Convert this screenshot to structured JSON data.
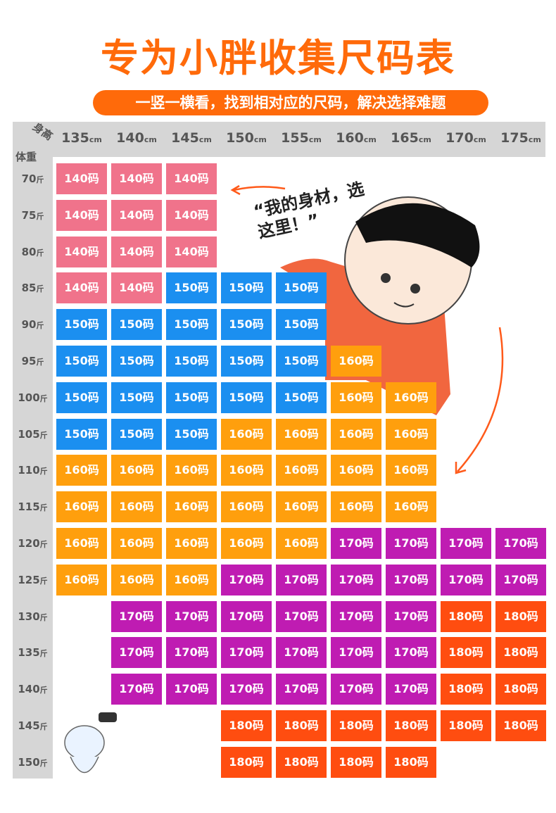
{
  "title": "专为小胖收集尺码表",
  "subtitle": "一竖一横看，找到相对应的尺码，解决选择难题",
  "corner": {
    "height": "身高",
    "weight": "体重"
  },
  "speech": "“我的身材，选这里！”",
  "columns": [
    {
      "value": "135",
      "unit": "cm"
    },
    {
      "value": "140",
      "unit": "cm"
    },
    {
      "value": "145",
      "unit": "cm"
    },
    {
      "value": "150",
      "unit": "cm"
    },
    {
      "value": "155",
      "unit": "cm"
    },
    {
      "value": "160",
      "unit": "cm"
    },
    {
      "value": "165",
      "unit": "cm"
    },
    {
      "value": "170",
      "unit": "cm"
    },
    {
      "value": "175",
      "unit": "cm"
    }
  ],
  "rows": [
    {
      "value": "70",
      "unit": "斤"
    },
    {
      "value": "75",
      "unit": "斤"
    },
    {
      "value": "80",
      "unit": "斤"
    },
    {
      "value": "85",
      "unit": "斤"
    },
    {
      "value": "90",
      "unit": "斤"
    },
    {
      "value": "95",
      "unit": "斤"
    },
    {
      "value": "100",
      "unit": "斤"
    },
    {
      "value": "105",
      "unit": "斤"
    },
    {
      "value": "110",
      "unit": "斤"
    },
    {
      "value": "115",
      "unit": "斤"
    },
    {
      "value": "120",
      "unit": "斤"
    },
    {
      "value": "125",
      "unit": "斤"
    },
    {
      "value": "130",
      "unit": "斤"
    },
    {
      "value": "135",
      "unit": "斤"
    },
    {
      "value": "140",
      "unit": "斤"
    },
    {
      "value": "145",
      "unit": "斤"
    },
    {
      "value": "150",
      "unit": "斤"
    }
  ],
  "size_colors": {
    "140码": "#f0738b",
    "150码": "#1b8ff0",
    "160码": "#ff9f0d",
    "170码": "#bf1cb2",
    "180码": "#ff4d10"
  },
  "cells": [
    [
      "140码",
      "140码",
      "140码",
      null,
      null,
      null,
      null,
      null,
      null
    ],
    [
      "140码",
      "140码",
      "140码",
      null,
      null,
      null,
      null,
      null,
      null
    ],
    [
      "140码",
      "140码",
      "140码",
      null,
      null,
      null,
      null,
      null,
      null
    ],
    [
      "140码",
      "140码",
      "150码",
      "150码",
      "150码",
      null,
      null,
      null,
      null
    ],
    [
      "150码",
      "150码",
      "150码",
      "150码",
      "150码",
      null,
      null,
      null,
      null
    ],
    [
      "150码",
      "150码",
      "150码",
      "150码",
      "150码",
      "160码",
      null,
      null,
      null
    ],
    [
      "150码",
      "150码",
      "150码",
      "150码",
      "150码",
      "160码",
      "160码",
      null,
      null
    ],
    [
      "150码",
      "150码",
      "150码",
      "160码",
      "160码",
      "160码",
      "160码",
      null,
      null
    ],
    [
      "160码",
      "160码",
      "160码",
      "160码",
      "160码",
      "160码",
      "160码",
      null,
      null
    ],
    [
      "160码",
      "160码",
      "160码",
      "160码",
      "160码",
      "160码",
      "160码",
      null,
      null
    ],
    [
      "160码",
      "160码",
      "160码",
      "160码",
      "160码",
      "170码",
      "170码",
      "170码",
      "170码"
    ],
    [
      "160码",
      "160码",
      "160码",
      "170码",
      "170码",
      "170码",
      "170码",
      "170码",
      "170码"
    ],
    [
      null,
      "170码",
      "170码",
      "170码",
      "170码",
      "170码",
      "170码",
      "180码",
      "180码"
    ],
    [
      null,
      "170码",
      "170码",
      "170码",
      "170码",
      "170码",
      "170码",
      "180码",
      "180码"
    ],
    [
      null,
      "170码",
      "170码",
      "170码",
      "170码",
      "170码",
      "170码",
      "180码",
      "180码"
    ],
    [
      null,
      null,
      null,
      "180码",
      "180码",
      "180码",
      "180码",
      "180码",
      "180码"
    ],
    [
      null,
      null,
      null,
      "180码",
      "180码",
      "180码",
      "180码",
      null,
      null
    ]
  ]
}
